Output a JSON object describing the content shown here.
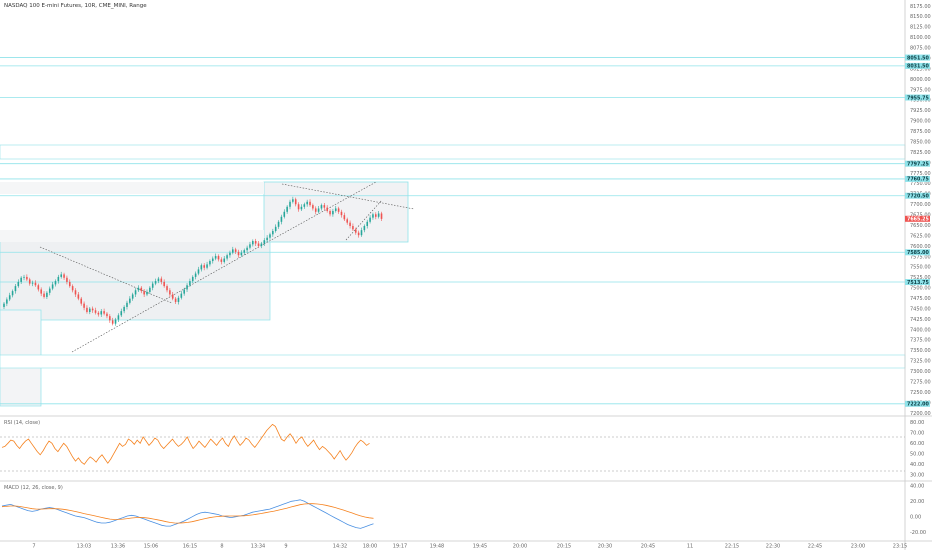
{
  "main_title": "NASDAQ 100 E-mini Futures, 10R, CME_MINI, Range",
  "colors": {
    "up": "#26a69a",
    "down": "#ef5350",
    "zone": "#8fe3ea",
    "price_tag": "#ef5350",
    "tag_bg": "#8fe3ea",
    "rsi": "#f5821f",
    "macd": "#4a90e2",
    "signal": "#f5821f"
  },
  "x_axis": {
    "labels": [
      "7",
      "13:03",
      "13:36",
      "15:06",
      "16:15",
      "8",
      "13:34",
      "9",
      "14:32",
      "18:00",
      "19:17",
      "19:48",
      "19:45",
      "20:00",
      "20:15",
      "20:30",
      "20:45",
      "11",
      "22:15",
      "22:30",
      "22:45",
      "23:00",
      "23:15"
    ]
  },
  "price_axis": {
    "labels": [
      "8175.00",
      "8150.00",
      "8125.00",
      "8100.00",
      "8075.00",
      "8050.00",
      "8025.00",
      "8000.00",
      "7975.00",
      "7950.00",
      "7925.00",
      "7900.00",
      "7875.00",
      "7850.00",
      "7825.00",
      "7800.00",
      "7775.00",
      "7750.00",
      "7725.00",
      "7700.00",
      "7675.00",
      "7650.00",
      "7625.00",
      "7600.00",
      "7575.00",
      "7550.00",
      "7525.00",
      "7500.00",
      "7475.00",
      "7450.00",
      "7425.00",
      "7400.00",
      "7375.00",
      "7350.00",
      "7325.00",
      "7300.00",
      "7275.00",
      "7250.00",
      "7225.00",
      "7200.00"
    ]
  },
  "levels": [
    {
      "price": 8051.5,
      "label": "8051.50"
    },
    {
      "price": 8031.5,
      "label": "8031.50"
    },
    {
      "price": 7955.75,
      "label": "7955.75"
    },
    {
      "price": 7797.25,
      "label": "7797.25"
    },
    {
      "price": 7760.75,
      "label": "7760.75"
    },
    {
      "price": 7720.5,
      "label": "7720.50"
    },
    {
      "price": 7585.0,
      "label": "7585.00"
    },
    {
      "price": 7513.75,
      "label": "7513.75"
    },
    {
      "price": 7222.0,
      "label": "7222.00"
    }
  ],
  "current_price": {
    "price": 7665.25,
    "label": "7665.25"
  },
  "rsi_panel": {
    "title": "RSI (14, close)",
    "labels": [
      "80.00",
      "70.00",
      "60.00",
      "50.00",
      "40.00",
      "30.00"
    ]
  },
  "macd_panel": {
    "title": "MACD (12, 26, close, 9)",
    "labels": [
      "40.00",
      "20.00",
      "0.00",
      "-20.00"
    ]
  },
  "chart_data": {
    "type": "candlestick",
    "title": "NASDAQ 100 E-mini Futures, 10R, CME_MINI, Range",
    "price_range": [
      7200,
      8175
    ],
    "closes": [
      7462,
      7472,
      7482,
      7492,
      7504,
      7514,
      7524,
      7526,
      7520,
      7510,
      7512,
      7506,
      7496,
      7486,
      7478,
      7488,
      7498,
      7508,
      7516,
      7526,
      7532,
      7524,
      7514,
      7504,
      7494,
      7484,
      7474,
      7462,
      7452,
      7442,
      7450,
      7446,
      7440,
      7436,
      7444,
      7438,
      7432,
      7422,
      7414,
      7424,
      7434,
      7444,
      7454,
      7464,
      7474,
      7484,
      7494,
      7500,
      7492,
      7484,
      7490,
      7500,
      7510,
      7516,
      7522,
      7514,
      7504,
      7494,
      7484,
      7474,
      7466,
      7476,
      7486,
      7496,
      7506,
      7516,
      7526,
      7534,
      7544,
      7554,
      7548,
      7556,
      7564,
      7570,
      7576,
      7568,
      7562,
      7570,
      7578,
      7584,
      7592,
      7586,
      7578,
      7584,
      7590,
      7596,
      7604,
      7612,
      7606,
      7600,
      7606,
      7614,
      7620,
      7628,
      7636,
      7646,
      7658,
      7670,
      7682,
      7694,
      7706,
      7712,
      7700,
      7688,
      7694,
      7700,
      7706,
      7698,
      7690,
      7682,
      7690,
      7698,
      7692,
      7684,
      7676,
      7684,
      7690,
      7682,
      7674,
      7664,
      7656,
      7648,
      7640,
      7632,
      7626,
      7638,
      7648,
      7658,
      7668,
      7676,
      7670,
      7678,
      7665
    ],
    "rsi": [
      56,
      57,
      60,
      63,
      62,
      58,
      55,
      59,
      62,
      64,
      60,
      56,
      52,
      49,
      53,
      58,
      62,
      60,
      55,
      52,
      56,
      60,
      57,
      52,
      47,
      43,
      46,
      42,
      40,
      44,
      47,
      45,
      42,
      46,
      49,
      45,
      41,
      45,
      50,
      55,
      60,
      57,
      59,
      64,
      62,
      59,
      63,
      60,
      66,
      62,
      58,
      61,
      65,
      63,
      58,
      55,
      58,
      61,
      64,
      60,
      57,
      59,
      62,
      66,
      60,
      55,
      58,
      62,
      59,
      56,
      60,
      64,
      61,
      58,
      62,
      65,
      60,
      57,
      63,
      67,
      62,
      58,
      61,
      65,
      63,
      59,
      56,
      60,
      64,
      68,
      72,
      75,
      78,
      76,
      70,
      64,
      62,
      66,
      69,
      65,
      60,
      64,
      66,
      61,
      57,
      60,
      63,
      58,
      54,
      57,
      55,
      52,
      49,
      45,
      49,
      53,
      48,
      44,
      47,
      51,
      56,
      60,
      63,
      61,
      58,
      60
    ],
    "macd": [
      14,
      15,
      16,
      14,
      12,
      10,
      8,
      7,
      8,
      10,
      11,
      12,
      11,
      9,
      7,
      5,
      3,
      1,
      0,
      -1,
      -3,
      -5,
      -7,
      -8,
      -8,
      -7,
      -5,
      -3,
      -1,
      1,
      2,
      1,
      -1,
      -3,
      -5,
      -7,
      -9,
      -11,
      -12,
      -12,
      -10,
      -8,
      -6,
      -3,
      0,
      3,
      5,
      6,
      5,
      4,
      3,
      1,
      0,
      -1,
      0,
      1,
      2,
      4,
      6,
      7,
      8,
      9,
      10,
      12,
      14,
      16,
      18,
      20,
      21,
      22,
      20,
      17,
      14,
      11,
      8,
      5,
      2,
      -1,
      -4,
      -7,
      -10,
      -12,
      -14,
      -15,
      -13,
      -11,
      -9
    ],
    "signal": [
      13,
      13.5,
      14,
      14,
      13.5,
      12.5,
      11.5,
      10.5,
      10,
      10,
      10.2,
      10.5,
      10.6,
      10.4,
      9.8,
      9,
      8,
      6.8,
      5.5,
      4.2,
      3,
      1.8,
      0.5,
      -0.8,
      -2,
      -3,
      -3.5,
      -3.4,
      -3,
      -2.3,
      -1.6,
      -1,
      -0.8,
      -1.1,
      -1.8,
      -2.8,
      -3.9,
      -5.1,
      -6.3,
      -7.4,
      -8,
      -8.1,
      -7.8,
      -7.2,
      -6.3,
      -5,
      -3.6,
      -2.3,
      -1.2,
      -0.3,
      0.4,
      0.8,
      1,
      1,
      1,
      1.1,
      1.3,
      1.8,
      2.5,
      3.4,
      4.3,
      5.3,
      6.3,
      7.4,
      8.6,
      9.9,
      11.3,
      12.8,
      14.2,
      15.6,
      16.6,
      17,
      17,
      16.6,
      15.9,
      14.9,
      13.6,
      12.1,
      10.5,
      8.8,
      6.9,
      5,
      3,
      1.2,
      -0.2,
      -1.3,
      -2
    ]
  }
}
